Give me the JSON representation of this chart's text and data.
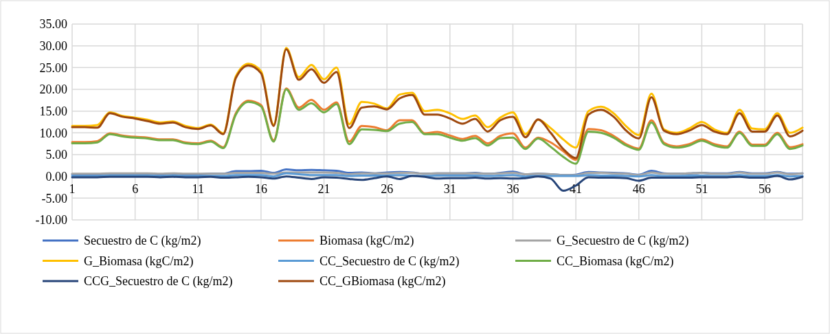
{
  "chart_data": {
    "type": "line",
    "x": [
      1,
      2,
      3,
      4,
      5,
      6,
      7,
      8,
      9,
      10,
      11,
      12,
      13,
      14,
      15,
      16,
      17,
      18,
      19,
      20,
      21,
      22,
      23,
      24,
      25,
      26,
      27,
      28,
      29,
      30,
      31,
      32,
      33,
      34,
      35,
      36,
      37,
      38,
      39,
      40,
      41,
      42,
      43,
      44,
      45,
      46,
      47,
      48,
      49,
      50,
      51,
      52,
      53,
      54,
      55,
      56,
      57,
      58,
      59
    ],
    "xlim": [
      1,
      59
    ],
    "xticks": [
      1,
      6,
      11,
      16,
      21,
      26,
      31,
      36,
      41,
      46,
      51,
      56
    ],
    "ylim": [
      -10,
      35
    ],
    "yticks": [
      {
        "value": -10,
        "label": "-10.00"
      },
      {
        "value": -5,
        "label": "-5.00"
      },
      {
        "value": 0,
        "label": "0.00"
      },
      {
        "value": 5,
        "label": "5.00"
      },
      {
        "value": 10,
        "label": "10.00"
      },
      {
        "value": 15,
        "label": "15.00"
      },
      {
        "value": 20,
        "label": "20.00"
      },
      {
        "value": 25,
        "label": "25.00"
      },
      {
        "value": 30,
        "label": "30.00"
      },
      {
        "value": 35,
        "label": "35.00"
      }
    ],
    "grid": true,
    "legend": "bottom",
    "marker": "none",
    "line_style": "solid",
    "series": [
      {
        "name": "Secuestro de C (kg/m2)",
        "color": "#4472c4",
        "values": [
          0.5,
          0.5,
          0.5,
          0.6,
          0.6,
          0.6,
          0.6,
          0.5,
          0.6,
          0.5,
          0.5,
          0.6,
          0.6,
          1.2,
          1.2,
          1.3,
          0.8,
          1.6,
          1.4,
          1.5,
          1.4,
          1.3,
          0.8,
          0.9,
          0.7,
          0.9,
          1.0,
          0.9,
          0.6,
          0.7,
          0.7,
          0.7,
          0.8,
          0.6,
          0.8,
          1.1,
          0.5,
          0.6,
          0.5,
          0.3,
          0.4,
          1.0,
          0.9,
          0.8,
          0.7,
          0.4,
          1.3,
          0.7,
          0.6,
          0.7,
          0.8,
          0.7,
          0.7,
          1.0,
          0.7,
          0.7,
          1.0,
          0.6,
          0.7
        ]
      },
      {
        "name": "Biomasa (kgC/m2)",
        "color": "#ed7d31",
        "values": [
          7.9,
          7.9,
          8.1,
          9.9,
          9.4,
          9.1,
          8.9,
          8.5,
          8.5,
          7.8,
          7.6,
          8.2,
          6.7,
          14.5,
          17.4,
          16.4,
          8.3,
          20.2,
          15.8,
          17.6,
          15.3,
          17.0,
          8.0,
          11.6,
          11.3,
          10.6,
          12.9,
          12.9,
          9.9,
          10.2,
          9.4,
          8.6,
          9.3,
          7.6,
          9.3,
          9.9,
          6.6,
          8.9,
          7.8,
          5.8,
          3.8,
          10.9,
          10.6,
          9.3,
          7.4,
          6.4,
          12.9,
          7.7,
          6.9,
          7.4,
          8.5,
          7.4,
          6.9,
          10.3,
          7.3,
          7.3,
          10.0,
          6.7,
          7.4
        ]
      },
      {
        "name": "G_Secuestro de C (kg/m2)",
        "color": "#a5a5a5",
        "values": [
          0.6,
          0.6,
          0.6,
          0.7,
          0.7,
          0.7,
          0.7,
          0.6,
          0.7,
          0.6,
          0.6,
          0.6,
          0.6,
          0.8,
          0.8,
          0.8,
          0.6,
          0.9,
          0.9,
          0.9,
          0.9,
          0.8,
          0.5,
          0.7,
          0.7,
          0.7,
          0.8,
          0.8,
          0.6,
          0.7,
          0.7,
          0.7,
          0.7,
          0.6,
          0.7,
          0.8,
          0.5,
          0.6,
          0.5,
          0.3,
          0.3,
          0.8,
          0.8,
          0.7,
          0.6,
          0.3,
          0.9,
          0.6,
          0.6,
          0.7,
          0.8,
          0.6,
          0.6,
          0.9,
          0.6,
          0.6,
          0.9,
          0.5,
          0.7
        ]
      },
      {
        "name": "G_Biomasa (kgC/m2)",
        "color": "#ffc000",
        "values": [
          11.6,
          11.6,
          11.8,
          14.7,
          13.9,
          13.5,
          13.0,
          12.4,
          12.6,
          11.6,
          11.1,
          11.9,
          9.9,
          23.0,
          25.9,
          24.2,
          11.9,
          29.5,
          22.8,
          25.6,
          22.3,
          25.0,
          12.0,
          17.1,
          16.7,
          15.6,
          18.8,
          19.2,
          15.0,
          15.3,
          14.5,
          13.2,
          14.0,
          11.3,
          13.5,
          14.7,
          9.7,
          13.0,
          11.1,
          8.5,
          6.6,
          15.0,
          16.0,
          14.5,
          11.5,
          9.5,
          19.0,
          10.8,
          10.0,
          11.0,
          12.5,
          10.8,
          10.0,
          15.3,
          11.0,
          10.8,
          14.5,
          10.0,
          11.2
        ]
      },
      {
        "name": "CC_Secuestro de C (kg/m2)",
        "color": "#5b9bd5",
        "values": [
          0.1,
          0.1,
          0.1,
          0.2,
          0.2,
          0.2,
          0.2,
          0.1,
          0.2,
          0.1,
          0.1,
          0.1,
          0.1,
          0.3,
          0.3,
          0.3,
          0.0,
          0.7,
          0.5,
          0.3,
          0.3,
          0.3,
          0.1,
          0.2,
          0.2,
          0.2,
          0.3,
          0.2,
          0.1,
          0.2,
          0.2,
          0.2,
          0.2,
          0.1,
          0.2,
          0.3,
          0.0,
          0.1,
          0.1,
          0.1,
          0.1,
          0.3,
          0.2,
          0.2,
          0.1,
          0.0,
          0.3,
          0.1,
          0.1,
          0.2,
          0.2,
          0.1,
          0.1,
          0.3,
          0.1,
          0.1,
          0.3,
          0.0,
          0.1
        ]
      },
      {
        "name": "CC_Biomasa (kgC/m2)",
        "color": "#70ad47",
        "values": [
          7.6,
          7.6,
          7.8,
          9.7,
          9.2,
          8.9,
          8.7,
          8.3,
          8.3,
          7.6,
          7.4,
          8.0,
          6.5,
          14.2,
          17.1,
          16.1,
          8.0,
          20.0,
          15.3,
          16.8,
          14.7,
          16.6,
          7.4,
          10.8,
          10.7,
          10.4,
          12.1,
          12.5,
          9.7,
          9.7,
          8.9,
          8.2,
          8.8,
          7.1,
          8.8,
          8.9,
          6.3,
          8.7,
          6.8,
          4.5,
          2.9,
          10.3,
          10.0,
          8.9,
          7.1,
          6.1,
          12.4,
          7.4,
          6.6,
          7.1,
          8.2,
          7.1,
          6.6,
          10.0,
          7.0,
          7.0,
          9.7,
          6.3,
          7.1
        ]
      },
      {
        "name": "CCG_Secuestro de C (kg/m2)",
        "color": "#264478",
        "values": [
          -0.2,
          -0.2,
          -0.2,
          -0.1,
          -0.1,
          -0.1,
          -0.1,
          -0.2,
          -0.1,
          -0.2,
          -0.2,
          -0.1,
          -0.3,
          -0.2,
          -0.1,
          -0.2,
          -0.5,
          0.0,
          -0.3,
          -0.6,
          -0.2,
          -0.3,
          -0.6,
          -0.8,
          -0.4,
          0.0,
          -0.6,
          0.1,
          -0.1,
          -0.5,
          -0.4,
          -0.4,
          -0.3,
          -0.5,
          -0.4,
          -0.5,
          -0.4,
          0.0,
          -0.5,
          -3.3,
          -2.1,
          -0.2,
          -0.3,
          -0.3,
          -0.4,
          -1.0,
          -0.3,
          -0.3,
          -0.3,
          -0.3,
          -0.2,
          -0.2,
          -0.2,
          -0.1,
          -0.3,
          -0.3,
          0.1,
          -0.7,
          -0.1
        ]
      },
      {
        "name": "CC_GBiomasa (kgC/m2)",
        "color": "#9e480e",
        "values": [
          11.3,
          11.3,
          11.2,
          14.5,
          13.7,
          13.3,
          12.7,
          12.1,
          12.4,
          11.3,
          10.9,
          11.7,
          9.7,
          22.6,
          25.5,
          23.7,
          11.6,
          29.2,
          22.2,
          24.6,
          21.5,
          24.0,
          11.1,
          15.8,
          16.1,
          15.4,
          17.9,
          18.7,
          14.2,
          14.2,
          13.3,
          12.1,
          13.2,
          10.3,
          12.9,
          13.7,
          9.0,
          13.1,
          10.0,
          6.3,
          4.2,
          14.2,
          15.3,
          13.7,
          10.5,
          8.7,
          18.2,
          10.5,
          9.7,
          10.5,
          11.8,
          10.3,
          9.7,
          14.5,
          10.3,
          10.3,
          14.0,
          9.2,
          10.5
        ]
      }
    ]
  }
}
